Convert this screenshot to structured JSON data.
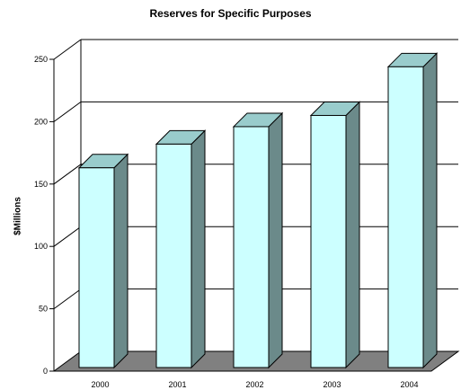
{
  "chart_data": {
    "type": "bar",
    "title": "Reserves for Specific Purposes",
    "ylabel": "$Millions",
    "xlabel": "",
    "categories": [
      "2000",
      "2001",
      "2002",
      "2003",
      "2004"
    ],
    "values": [
      163,
      182,
      196,
      205,
      244
    ],
    "ylim": [
      0,
      250
    ],
    "yticks": [
      0,
      50,
      100,
      150,
      200,
      250
    ],
    "grid": true,
    "three_d": true,
    "colors": {
      "bar_front": "#ccffff",
      "bar_top": "#99cccc",
      "bar_side": "#6b8a8a",
      "floor": "#808080",
      "outline": "#000000"
    }
  }
}
